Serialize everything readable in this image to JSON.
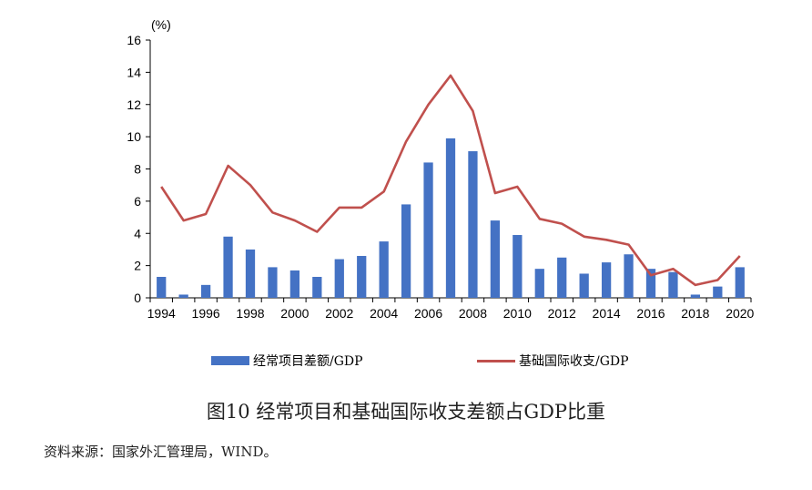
{
  "chart_data": {
    "type": "bar",
    "title": "",
    "ylabel": "(%)",
    "xlabel": "",
    "ylim": [
      0,
      16
    ],
    "yticks": [
      0,
      2,
      4,
      6,
      8,
      10,
      12,
      14,
      16
    ],
    "x": [
      1994,
      1995,
      1996,
      1997,
      1998,
      1999,
      2000,
      2001,
      2002,
      2003,
      2004,
      2005,
      2006,
      2007,
      2008,
      2009,
      2010,
      2011,
      2012,
      2013,
      2014,
      2015,
      2016,
      2017,
      2018,
      2019,
      2020
    ],
    "xtick_labels": [
      "1994",
      "1996",
      "1998",
      "2000",
      "2002",
      "2004",
      "2006",
      "2008",
      "2010",
      "2012",
      "2014",
      "2016",
      "2018",
      "2020"
    ],
    "series": [
      {
        "name": "经常项目差额/GDP",
        "type": "bar",
        "color": "#4472C4",
        "values": [
          1.3,
          0.2,
          0.8,
          3.8,
          3.0,
          1.9,
          1.7,
          1.3,
          2.4,
          2.6,
          3.5,
          5.8,
          8.4,
          9.9,
          9.1,
          4.8,
          3.9,
          1.8,
          2.5,
          1.5,
          2.2,
          2.7,
          1.8,
          1.6,
          0.2,
          0.7,
          1.9
        ]
      },
      {
        "name": "基础国际收支/GDP",
        "type": "line",
        "color": "#C0504D",
        "values": [
          6.9,
          4.8,
          5.2,
          8.2,
          7.0,
          5.3,
          4.8,
          4.1,
          5.6,
          5.6,
          6.6,
          9.7,
          12.0,
          13.8,
          11.6,
          6.5,
          6.9,
          4.9,
          4.6,
          3.8,
          3.6,
          3.3,
          1.4,
          1.8,
          0.8,
          1.1,
          2.6
        ]
      }
    ],
    "legend_position": "bottom",
    "grid": false
  },
  "caption": "图10 经常项目和基础国际收支差额占GDP比重",
  "source": "资料来源：国家外汇管理局，WIND。"
}
